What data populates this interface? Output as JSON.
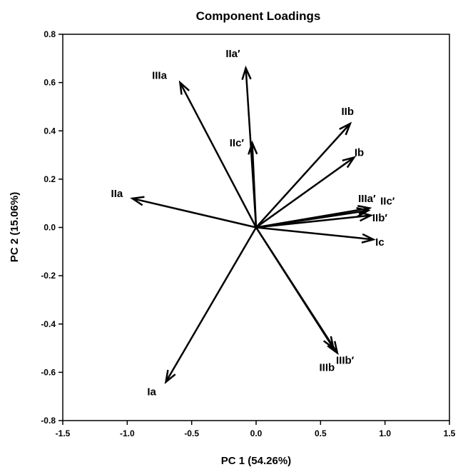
{
  "chart_data": {
    "type": "scatter",
    "title": "Component Loadings",
    "xlabel": "PC 1 (54.26%)",
    "ylabel": "PC 2 (15.06%)",
    "xlim": [
      -1.5,
      1.5
    ],
    "ylim": [
      -0.8,
      0.8
    ],
    "xticks": [
      "-1.5",
      "-1.0",
      "-0.5",
      "0.0",
      "0.5",
      "1.0",
      "1.5"
    ],
    "yticks": [
      "-0.8",
      "-0.6",
      "-0.4",
      "-0.2",
      "0.0",
      "0.2",
      "0.4",
      "0.6",
      "0.8"
    ],
    "grid": false,
    "vectors": [
      {
        "name": "Ia",
        "x": -0.7,
        "y": -0.64
      },
      {
        "name": "Ib",
        "x": 0.76,
        "y": 0.29
      },
      {
        "name": "Ic",
        "x": 0.91,
        "y": -0.05
      },
      {
        "name": "IIa",
        "x": -0.96,
        "y": 0.12
      },
      {
        "name": "IIb",
        "x": 0.73,
        "y": 0.43
      },
      {
        "name": "IIc′",
        "x": -0.03,
        "y": 0.35
      },
      {
        "name": "IIa′",
        "x": -0.08,
        "y": 0.66
      },
      {
        "name": "IIb′",
        "x": 0.89,
        "y": 0.05
      },
      {
        "name": "IIc′",
        "x": 0.87,
        "y": 0.07
      },
      {
        "name": "IIIa",
        "x": -0.59,
        "y": 0.6
      },
      {
        "name": "IIIb",
        "x": 0.6,
        "y": -0.5
      },
      {
        "name": "IIIa′",
        "x": 0.88,
        "y": 0.08
      },
      {
        "name": "IIIb′",
        "x": 0.63,
        "y": -0.52
      }
    ],
    "labels": [
      {
        "text": "Ia",
        "x": -0.81,
        "y": -0.68
      },
      {
        "text": "Ib",
        "x": 0.8,
        "y": 0.31
      },
      {
        "text": "Ic",
        "x": 0.96,
        "y": -0.06
      },
      {
        "text": "IIa",
        "x": -1.08,
        "y": 0.14
      },
      {
        "text": "IIb",
        "x": 0.71,
        "y": 0.48
      },
      {
        "text": "IIc′",
        "x": -0.15,
        "y": 0.35
      },
      {
        "text": "IIa′",
        "x": -0.18,
        "y": 0.72
      },
      {
        "text": "IIb′",
        "x": 0.96,
        "y": 0.04
      },
      {
        "text": "IIc′",
        "x": 1.02,
        "y": 0.11
      },
      {
        "text": "IIIa",
        "x": -0.75,
        "y": 0.63
      },
      {
        "text": "IIIb",
        "x": 0.55,
        "y": -0.58
      },
      {
        "text": "IIIa′",
        "x": 0.86,
        "y": 0.12
      },
      {
        "text": "IIIb′",
        "x": 0.69,
        "y": -0.55
      }
    ]
  }
}
